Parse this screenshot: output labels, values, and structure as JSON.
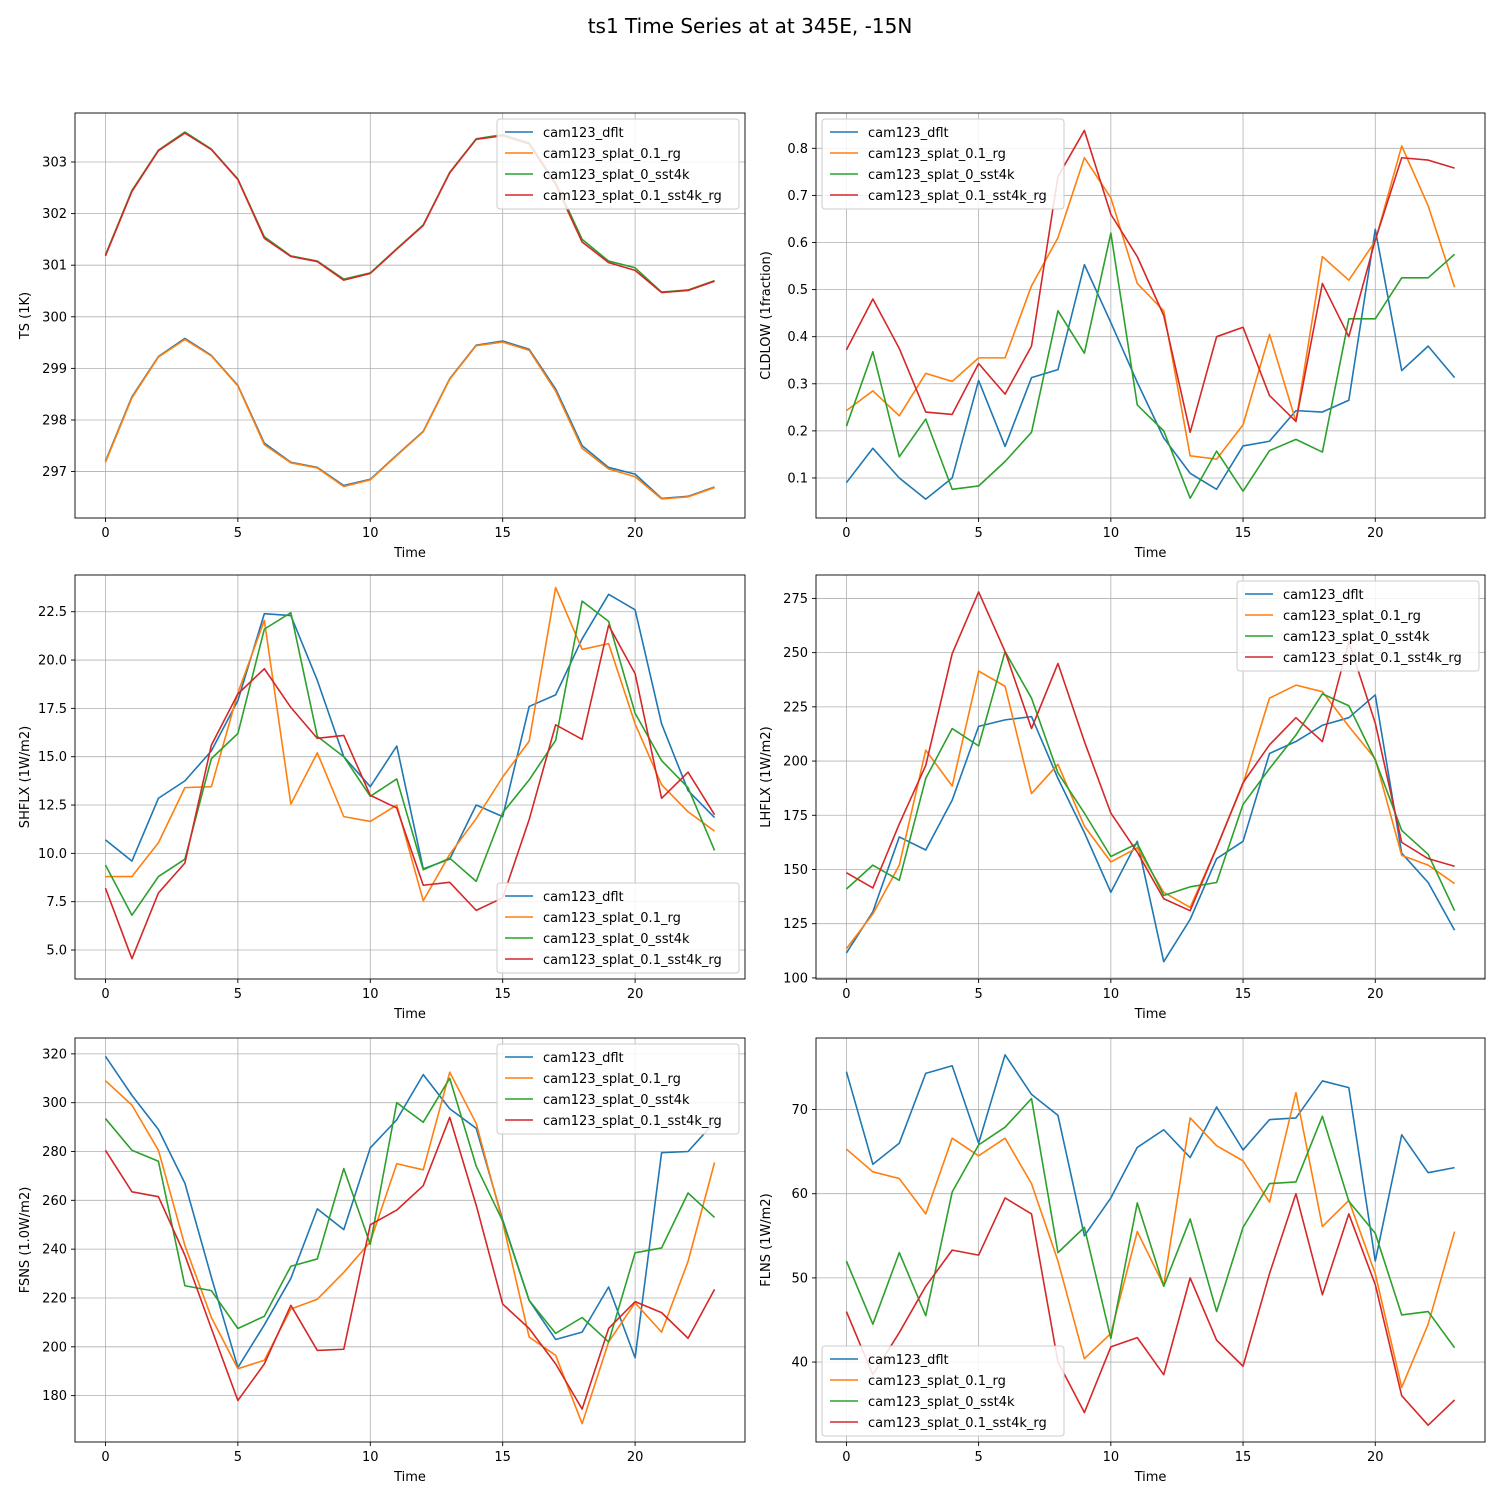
{
  "title": "ts1 Time Series at at 345E, -15N",
  "colors": {
    "cam123_dflt": "#1f77b4",
    "cam123_splat_0.1_rg": "#ff7f0e",
    "cam123_splat_0_sst4k": "#2ca02c",
    "cam123_splat_0.1_sst4k_rg": "#d62728"
  },
  "chart_data": [
    {
      "id": "ts",
      "type": "line",
      "xlabel": "Time",
      "ylabel": "TS (1K)",
      "xlim": [
        -1.15,
        24.15
      ],
      "ylim": [
        296.1,
        303.95
      ],
      "xticks": [
        0,
        5,
        10,
        15,
        20
      ],
      "yticks": [
        297,
        298,
        299,
        300,
        301,
        302,
        303
      ],
      "ytick_labels": [
        "297",
        "298",
        "299",
        "300",
        "301",
        "302",
        "303"
      ],
      "legend_loc": "upper-right",
      "x": [
        0,
        1,
        2,
        3,
        4,
        5,
        6,
        7,
        8,
        9,
        10,
        11,
        12,
        13,
        14,
        15,
        16,
        17,
        18,
        19,
        20,
        21,
        22,
        23
      ],
      "series": [
        {
          "name": "cam123_dflt",
          "values": [
            297.2,
            298.45,
            299.23,
            299.58,
            299.25,
            298.67,
            297.55,
            297.18,
            297.08,
            296.73,
            296.85,
            297.32,
            297.78,
            298.8,
            299.45,
            299.53,
            299.37,
            298.6,
            297.5,
            297.08,
            296.95,
            296.48,
            296.52,
            296.7
          ]
        },
        {
          "name": "cam123_splat_0.1_rg",
          "values": [
            297.18,
            298.43,
            299.22,
            299.56,
            299.24,
            298.66,
            297.52,
            297.17,
            297.07,
            296.71,
            296.84,
            297.31,
            297.77,
            298.79,
            299.44,
            299.51,
            299.35,
            298.56,
            297.45,
            297.05,
            296.9,
            296.47,
            296.51,
            296.69
          ]
        },
        {
          "name": "cam123_splat_0_sst4k",
          "values": [
            301.2,
            302.45,
            303.23,
            303.58,
            303.25,
            302.67,
            301.55,
            301.18,
            301.08,
            300.73,
            300.85,
            301.32,
            301.78,
            302.8,
            303.45,
            303.53,
            303.37,
            302.6,
            301.5,
            301.08,
            300.95,
            300.48,
            300.52,
            300.7
          ]
        },
        {
          "name": "cam123_splat_0.1_sst4k_rg",
          "values": [
            301.18,
            302.43,
            303.22,
            303.56,
            303.24,
            302.66,
            301.52,
            301.17,
            301.07,
            300.71,
            300.84,
            301.31,
            301.77,
            302.79,
            303.44,
            303.51,
            303.35,
            302.56,
            301.45,
            301.05,
            300.9,
            300.47,
            300.51,
            300.69
          ]
        }
      ]
    },
    {
      "id": "cldlow",
      "type": "line",
      "xlabel": "Time",
      "ylabel": "CLDLOW (1fraction)",
      "xlim": [
        -1.15,
        24.15
      ],
      "ylim": [
        0.015,
        0.875
      ],
      "xticks": [
        0,
        5,
        10,
        15,
        20
      ],
      "yticks": [
        0.1,
        0.2,
        0.3,
        0.4,
        0.5,
        0.6,
        0.7,
        0.8
      ],
      "ytick_labels": [
        "0.1",
        "0.2",
        "0.3",
        "0.4",
        "0.5",
        "0.6",
        "0.7",
        "0.8"
      ],
      "legend_loc": "upper-left",
      "x": [
        0,
        1,
        2,
        3,
        4,
        5,
        6,
        7,
        8,
        9,
        10,
        11,
        12,
        13,
        14,
        15,
        16,
        17,
        18,
        19,
        20,
        21,
        22,
        23
      ],
      "series": [
        {
          "name": "cam123_dflt",
          "values": [
            0.09,
            0.163,
            0.1,
            0.055,
            0.1,
            0.307,
            0.167,
            0.313,
            0.33,
            0.553,
            0.43,
            0.303,
            0.185,
            0.11,
            0.076,
            0.168,
            0.178,
            0.243,
            0.24,
            0.265,
            0.628,
            0.328,
            0.38,
            0.313
          ]
        },
        {
          "name": "cam123_splat_0.1_rg",
          "values": [
            0.243,
            0.285,
            0.232,
            0.322,
            0.305,
            0.355,
            0.355,
            0.508,
            0.61,
            0.78,
            0.695,
            0.513,
            0.455,
            0.147,
            0.14,
            0.213,
            0.405,
            0.22,
            0.57,
            0.52,
            0.603,
            0.805,
            0.678,
            0.505
          ]
        },
        {
          "name": "cam123_splat_0_sst4k",
          "values": [
            0.21,
            0.368,
            0.145,
            0.225,
            0.076,
            0.083,
            0.135,
            0.197,
            0.455,
            0.365,
            0.62,
            0.255,
            0.2,
            0.057,
            0.157,
            0.072,
            0.158,
            0.182,
            0.155,
            0.438,
            0.438,
            0.525,
            0.525,
            0.575
          ]
        },
        {
          "name": "cam123_splat_0.1_sst4k_rg",
          "values": [
            0.372,
            0.48,
            0.375,
            0.24,
            0.235,
            0.343,
            0.278,
            0.38,
            0.74,
            0.838,
            0.66,
            0.57,
            0.445,
            0.197,
            0.4,
            0.42,
            0.275,
            0.22,
            0.513,
            0.4,
            0.605,
            0.78,
            0.775,
            0.758
          ]
        }
      ]
    },
    {
      "id": "shflx",
      "type": "line",
      "xlabel": "Time",
      "ylabel": "SHFLX (1W/m2)",
      "xlim": [
        -1.15,
        24.15
      ],
      "ylim": [
        3.5,
        24.4
      ],
      "xticks": [
        0,
        5,
        10,
        15,
        20
      ],
      "yticks": [
        5,
        7.5,
        10,
        12.5,
        15,
        17.5,
        20,
        22.5
      ],
      "ytick_labels": [
        "5.0",
        "7.5",
        "10.0",
        "12.5",
        "15.0",
        "17.5",
        "20.0",
        "22.5"
      ],
      "legend_loc": "lower-right",
      "x": [
        0,
        1,
        2,
        3,
        4,
        5,
        6,
        7,
        8,
        9,
        10,
        11,
        12,
        13,
        14,
        15,
        16,
        17,
        18,
        19,
        20,
        21,
        22,
        23
      ],
      "series": [
        {
          "name": "cam123_dflt",
          "values": [
            10.7,
            9.6,
            12.85,
            13.75,
            15.3,
            17.9,
            22.4,
            22.3,
            18.95,
            15.0,
            13.45,
            15.55,
            9.2,
            9.7,
            12.5,
            11.9,
            17.6,
            18.2,
            21.1,
            23.4,
            22.6,
            16.7,
            13.25,
            11.85
          ]
        },
        {
          "name": "cam123_splat_0.1_rg",
          "values": [
            8.8,
            8.8,
            10.55,
            13.4,
            13.45,
            18.3,
            22.05,
            12.55,
            15.2,
            11.9,
            11.65,
            12.5,
            7.55,
            9.95,
            11.8,
            13.95,
            15.8,
            23.75,
            20.55,
            20.85,
            16.7,
            13.55,
            12.15,
            11.15
          ]
        },
        {
          "name": "cam123_splat_0_sst4k",
          "values": [
            9.4,
            6.8,
            8.8,
            9.7,
            14.9,
            16.2,
            21.6,
            22.45,
            16.05,
            15.0,
            12.95,
            13.85,
            9.15,
            9.75,
            8.55,
            12.1,
            13.8,
            15.85,
            23.05,
            22.0,
            17.25,
            14.8,
            13.4,
            10.15
          ]
        },
        {
          "name": "cam123_splat_0.1_sst4k_rg",
          "values": [
            8.2,
            4.55,
            7.95,
            9.5,
            15.6,
            18.25,
            19.55,
            17.55,
            15.95,
            16.1,
            13.0,
            12.35,
            8.35,
            8.5,
            7.05,
            7.7,
            11.75,
            16.65,
            15.9,
            21.8,
            19.3,
            12.85,
            14.2,
            12.0
          ]
        }
      ]
    },
    {
      "id": "lhflx",
      "type": "line",
      "xlabel": "Time",
      "ylabel": "LHFLX (1W/m2)",
      "xlim": [
        -1.15,
        24.15
      ],
      "ylim": [
        99.5,
        285.8
      ],
      "xticks": [
        0,
        5,
        10,
        15,
        20
      ],
      "yticks": [
        100,
        125,
        150,
        175,
        200,
        225,
        250,
        275
      ],
      "ytick_labels": [
        "100",
        "125",
        "150",
        "175",
        "200",
        "225",
        "250",
        "275"
      ],
      "legend_loc": "upper-right",
      "x": [
        0,
        1,
        2,
        3,
        4,
        5,
        6,
        7,
        8,
        9,
        10,
        11,
        12,
        13,
        14,
        15,
        16,
        17,
        18,
        19,
        20,
        21,
        22,
        23
      ],
      "series": [
        {
          "name": "cam123_dflt",
          "values": [
            111.5,
            130.5,
            165.0,
            159.0,
            182.0,
            216.0,
            219.0,
            220.5,
            192.0,
            167.0,
            139.5,
            163.0,
            107.5,
            127.0,
            155.0,
            163.0,
            203.5,
            209.0,
            216.5,
            220.0,
            230.5,
            157.5,
            144.0,
            122.0
          ]
        },
        {
          "name": "cam123_splat_0.1_rg",
          "values": [
            113.5,
            129.5,
            152.0,
            205.0,
            188.5,
            241.5,
            234.5,
            185.0,
            198.5,
            170.0,
            153.5,
            160.0,
            139.5,
            132.5,
            160.0,
            189.5,
            229.0,
            235.0,
            232.0,
            216.0,
            201.0,
            156.5,
            152.0,
            143.5
          ]
        },
        {
          "name": "cam123_splat_0_sst4k",
          "values": [
            141.0,
            152.0,
            145.0,
            192.0,
            215.0,
            207.0,
            250.5,
            229.0,
            194.5,
            176.0,
            156.0,
            162.0,
            138.0,
            142.0,
            144.0,
            180.0,
            196.5,
            212.0,
            231.0,
            225.5,
            200.5,
            168.0,
            157.0,
            131.0
          ]
        },
        {
          "name": "cam123_splat_0.1_sst4k_rg",
          "values": [
            148.5,
            141.5,
            171.0,
            198.0,
            249.5,
            278.0,
            250.5,
            215.0,
            245.0,
            209.0,
            176.0,
            158.0,
            136.5,
            131.0,
            160.0,
            190.0,
            207.5,
            220.0,
            209.0,
            255.0,
            217.5,
            162.5,
            155.0,
            151.5
          ]
        }
      ]
    },
    {
      "id": "fsns",
      "type": "line",
      "xlabel": "Time",
      "ylabel": "FSNS (1.0W/m2)",
      "xlim": [
        -1.15,
        24.15
      ],
      "ylim": [
        161.0,
        326.5
      ],
      "xticks": [
        0,
        5,
        10,
        15,
        20
      ],
      "yticks": [
        180,
        200,
        220,
        240,
        260,
        280,
        300,
        320
      ],
      "ytick_labels": [
        "180",
        "200",
        "220",
        "240",
        "260",
        "280",
        "300",
        "320"
      ],
      "legend_loc": "upper-right",
      "x": [
        0,
        1,
        2,
        3,
        4,
        5,
        6,
        7,
        8,
        9,
        10,
        11,
        12,
        13,
        14,
        15,
        16,
        17,
        18,
        19,
        20,
        21,
        22,
        23
      ],
      "series": [
        {
          "name": "cam123_dflt",
          "values": [
            319.0,
            303.0,
            289.0,
            267.0,
            228.5,
            191.5,
            209.0,
            228.0,
            256.5,
            248.0,
            281.5,
            293.0,
            311.5,
            297.5,
            289.5,
            252.0,
            219.0,
            203.0,
            206.0,
            224.5,
            195.5,
            279.5,
            280.0,
            292.0
          ]
        },
        {
          "name": "cam123_splat_0.1_rg",
          "values": [
            309.0,
            299.0,
            280.5,
            241.5,
            212.0,
            191.0,
            194.5,
            215.5,
            219.5,
            230.5,
            243.0,
            275.0,
            272.5,
            312.5,
            291.5,
            251.0,
            204.0,
            196.5,
            168.5,
            202.0,
            218.0,
            206.0,
            235.0,
            275.5
          ]
        },
        {
          "name": "cam123_splat_0_sst4k",
          "values": [
            293.5,
            280.5,
            276.0,
            225.0,
            223.0,
            207.5,
            212.5,
            233.0,
            236.0,
            273.0,
            242.0,
            300.0,
            292.0,
            310.0,
            274.0,
            251.5,
            219.0,
            205.5,
            212.0,
            202.0,
            238.5,
            240.5,
            263.0,
            253.0
          ]
        },
        {
          "name": "cam123_splat_0.1_sst4k_rg",
          "values": [
            280.5,
            263.5,
            261.5,
            237.5,
            207.5,
            178.0,
            193.0,
            217.0,
            198.5,
            199.0,
            250.0,
            256.0,
            266.0,
            294.0,
            258.0,
            217.5,
            207.5,
            193.0,
            174.5,
            207.5,
            218.5,
            214.0,
            203.5,
            223.5
          ]
        }
      ]
    },
    {
      "id": "flns",
      "type": "line",
      "xlabel": "Time",
      "ylabel": "FLNS (1W/m2)",
      "xlim": [
        -1.15,
        24.15
      ],
      "ylim": [
        30.5,
        78.5
      ],
      "xticks": [
        0,
        5,
        10,
        15,
        20
      ],
      "yticks": [
        40,
        50,
        60,
        70
      ],
      "ytick_labels": [
        "40",
        "50",
        "60",
        "70"
      ],
      "legend_loc": "lower-left",
      "x": [
        0,
        1,
        2,
        3,
        4,
        5,
        6,
        7,
        8,
        9,
        10,
        11,
        12,
        13,
        14,
        15,
        16,
        17,
        18,
        19,
        20,
        21,
        22,
        23
      ],
      "series": [
        {
          "name": "cam123_dflt",
          "values": [
            74.5,
            63.5,
            66.0,
            74.3,
            75.2,
            66.0,
            76.5,
            71.8,
            69.3,
            55.0,
            59.5,
            65.5,
            67.6,
            64.3,
            70.3,
            65.2,
            68.8,
            69.0,
            73.4,
            72.6,
            52.0,
            67.0,
            62.5,
            63.1
          ]
        },
        {
          "name": "cam123_splat_0.1_rg",
          "values": [
            65.3,
            62.6,
            61.8,
            57.6,
            66.6,
            64.5,
            66.6,
            61.2,
            52.0,
            40.4,
            43.4,
            55.5,
            49.1,
            69.0,
            65.7,
            63.9,
            59.0,
            72.0,
            56.1,
            59.2,
            50.5,
            37.0,
            44.5,
            55.5
          ]
        },
        {
          "name": "cam123_splat_0_sst4k",
          "values": [
            52.0,
            44.5,
            53.0,
            45.5,
            60.2,
            65.8,
            67.9,
            71.3,
            53.0,
            56.0,
            42.8,
            58.9,
            49.0,
            57.0,
            46.0,
            56.0,
            61.2,
            61.4,
            69.2,
            59.1,
            55.3,
            45.6,
            46.0,
            41.7
          ]
        },
        {
          "name": "cam123_splat_0.1_sst4k_rg",
          "values": [
            46.0,
            38.5,
            43.5,
            49.0,
            53.3,
            52.7,
            59.5,
            57.6,
            40.0,
            34.0,
            41.8,
            42.9,
            38.5,
            50.0,
            42.6,
            39.5,
            50.5,
            60.0,
            48.0,
            57.6,
            49.2,
            36.0,
            32.5,
            35.5
          ]
        }
      ]
    }
  ]
}
